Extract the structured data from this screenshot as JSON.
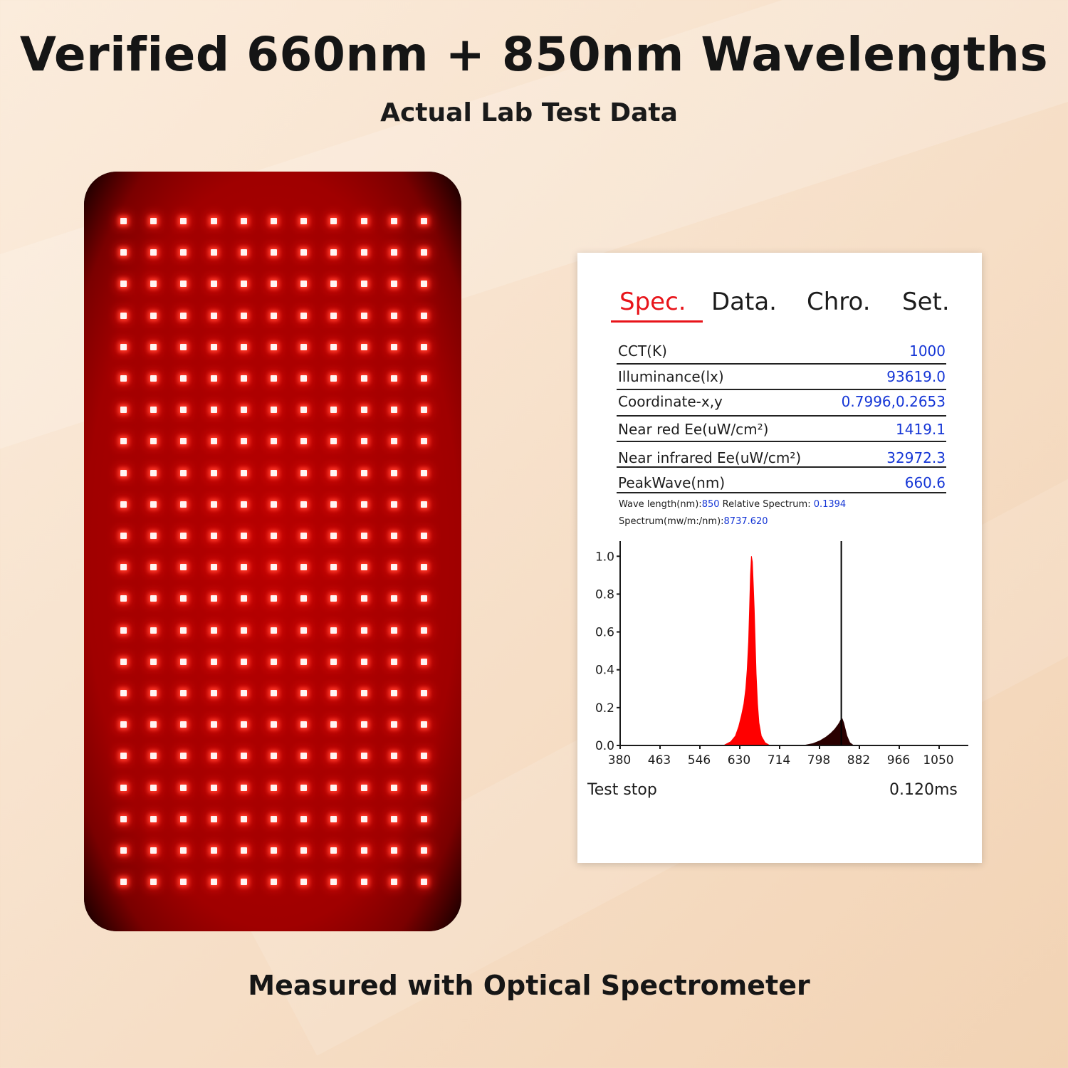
{
  "header": {
    "title": "Verified 660nm + 850nm Wavelengths",
    "subtitle": "Actual Lab Test Data"
  },
  "caption": "Measured with Optical Spectrometer",
  "panel": {
    "led_rows": 22,
    "led_cols": 11,
    "led_color": "#ff2a1e",
    "panel_color": "#a00000"
  },
  "screen": {
    "tabs": [
      {
        "label": "Spec.",
        "active": true
      },
      {
        "label": "Data.",
        "active": false
      },
      {
        "label": "Chro.",
        "active": false
      },
      {
        "label": "Set.",
        "active": false
      }
    ],
    "rows": [
      {
        "label": "CCT(K)",
        "value": "1000"
      },
      {
        "label": "Illuminance(lx)",
        "value": "93619.0"
      },
      {
        "label": "Coordinate-x,y",
        "value": "0.7996,0.2653"
      },
      {
        "label": "Near red Ee(uW/cm²)",
        "value": "1419.1"
      },
      {
        "label": "Near infrared Ee(uW/cm²)",
        "value": "32972.3"
      },
      {
        "label": "PeakWave(nm)",
        "value": "660.6"
      }
    ],
    "wave_line": {
      "label1": "Wave length(nm):",
      "value1": "850",
      "label2": " Relative Spectrum: ",
      "value2": "0.1394"
    },
    "spectrum_line": {
      "label": "Spectrum(mw/m:/nm):",
      "value": "8737.620"
    },
    "footer": {
      "status": "Test stop",
      "time": "0.120ms"
    },
    "accent_color": "#e8141a",
    "value_color": "#1536d6"
  },
  "chart_data": {
    "type": "area",
    "x_ticks": [
      "380",
      "463",
      "546",
      "630",
      "714",
      "798",
      "882",
      "966",
      "1050"
    ],
    "y_ticks": [
      "0.0",
      "0.2",
      "0.4",
      "0.6",
      "0.8",
      "1.0"
    ],
    "xlim": [
      380,
      1120
    ],
    "ylim": [
      0,
      1.08
    ],
    "cursor_x": 850,
    "series": [
      {
        "color": "#ff0000",
        "x": [
          600,
          615,
          625,
          632,
          638,
          643,
          647,
          650,
          653,
          655,
          657,
          659,
          661,
          663,
          665,
          667,
          669,
          672,
          675,
          680,
          688,
          698
        ],
        "values": [
          0.0,
          0.02,
          0.05,
          0.1,
          0.16,
          0.22,
          0.3,
          0.4,
          0.55,
          0.72,
          0.9,
          1.0,
          0.97,
          0.85,
          0.72,
          0.55,
          0.38,
          0.22,
          0.12,
          0.05,
          0.015,
          0.0
        ]
      },
      {
        "color": "#2a0000",
        "x": [
          770,
          790,
          805,
          818,
          828,
          836,
          842,
          846,
          849,
          852,
          855,
          858,
          862,
          868,
          876
        ],
        "values": [
          0.0,
          0.01,
          0.025,
          0.045,
          0.065,
          0.085,
          0.105,
          0.12,
          0.135,
          0.14,
          0.12,
          0.09,
          0.05,
          0.015,
          0.0
        ]
      }
    ]
  }
}
